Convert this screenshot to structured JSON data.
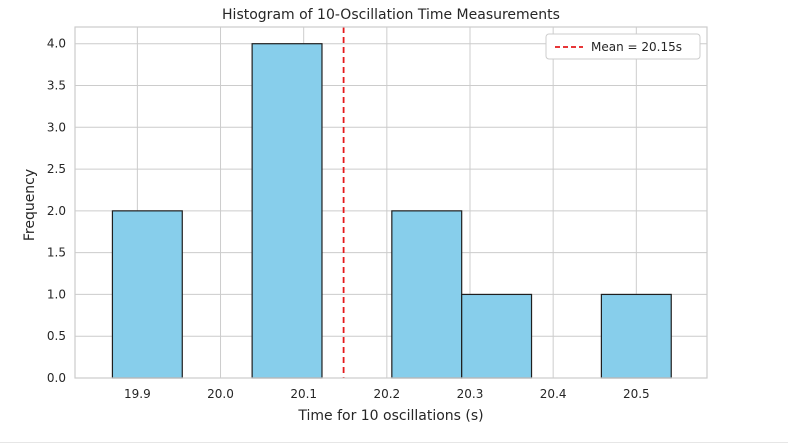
{
  "chart_data": {
    "type": "bar",
    "title": "Histogram of 10-Oscillation Time Measurements",
    "xlabel": "Time for 10 oscillations (s)",
    "ylabel": "Frequency",
    "xlim": [
      19.825,
      20.585
    ],
    "ylim": [
      0,
      4.2
    ],
    "x_ticks": [
      19.9,
      20.0,
      20.1,
      20.2,
      20.3,
      20.4,
      20.5
    ],
    "x_tick_labels": [
      "19.9",
      "20.0",
      "20.1",
      "20.2",
      "20.3",
      "20.4",
      "20.5"
    ],
    "y_ticks": [
      0.0,
      0.5,
      1.0,
      1.5,
      2.0,
      2.5,
      3.0,
      3.5,
      4.0
    ],
    "y_tick_labels": [
      "0.0",
      "0.5",
      "1.0",
      "1.5",
      "2.0",
      "2.5",
      "3.0",
      "3.5",
      "4.0"
    ],
    "grid": true,
    "bar_color": "#87ceeb",
    "edge_color": "#1f1f1f",
    "bins": [
      {
        "start": 19.87,
        "end": 19.954,
        "count": 2
      },
      {
        "start": 19.954,
        "end": 20.038,
        "count": 0
      },
      {
        "start": 20.038,
        "end": 20.122,
        "count": 4
      },
      {
        "start": 20.122,
        "end": 20.206,
        "count": 0
      },
      {
        "start": 20.206,
        "end": 20.29,
        "count": 2
      },
      {
        "start": 20.29,
        "end": 20.374,
        "count": 1
      },
      {
        "start": 20.374,
        "end": 20.458,
        "count": 0
      },
      {
        "start": 20.458,
        "end": 20.542,
        "count": 1
      }
    ],
    "mean_line": {
      "value": 20.148,
      "color": "#e41a1c",
      "style": "dashed"
    },
    "legend": {
      "position": "top-right",
      "entries": [
        {
          "label": "Mean = 20.15s",
          "color": "#e41a1c",
          "style": "dashed"
        }
      ]
    }
  }
}
